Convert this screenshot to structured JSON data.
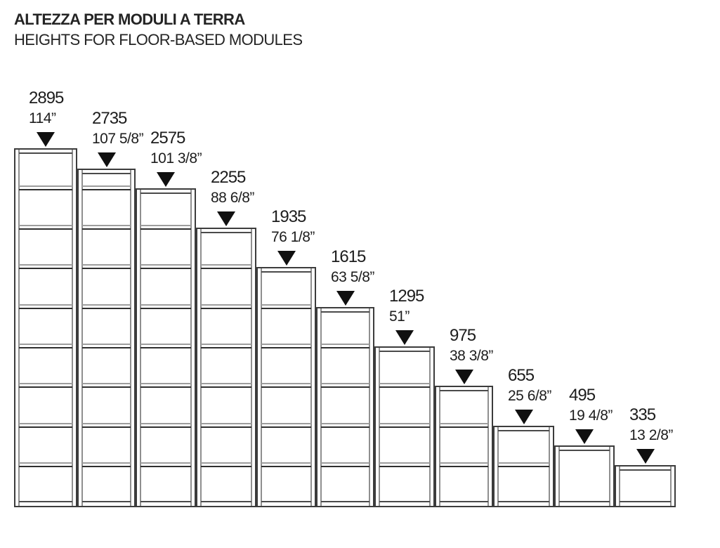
{
  "header": {
    "title_it": "ALTEZZA PER MODULI A TERRA",
    "title_en": "HEIGHTS FOR FLOOR-BASED MODULES"
  },
  "diagram": {
    "description": "Staircase row of 11 floor-based shelving modules, tallest to shortest, each annotated with height in millimetres and inches and a downward arrow marker pointing at its top edge",
    "modules": [
      {
        "height_mm": 2895,
        "label_mm": "2895",
        "label_inch": "114”",
        "shelf_levels_mm": [
          2575,
          2255,
          1935,
          1615,
          1295,
          975,
          655,
          335
        ]
      },
      {
        "height_mm": 2735,
        "label_mm": "2735",
        "label_inch": "107 5/8”",
        "shelf_levels_mm": [
          2575,
          2255,
          1935,
          1615,
          1295,
          975,
          655,
          335
        ]
      },
      {
        "height_mm": 2575,
        "label_mm": "2575",
        "label_inch": "101 3/8”",
        "shelf_levels_mm": [
          2255,
          1935,
          1615,
          1295,
          975,
          655,
          335
        ]
      },
      {
        "height_mm": 2255,
        "label_mm": "2255",
        "label_inch": "88 6/8”",
        "shelf_levels_mm": [
          1935,
          1615,
          1295,
          975,
          655,
          335
        ]
      },
      {
        "height_mm": 1935,
        "label_mm": "1935",
        "label_inch": "76 1/8”",
        "shelf_levels_mm": [
          1615,
          1295,
          975,
          655,
          335
        ]
      },
      {
        "height_mm": 1615,
        "label_mm": "1615",
        "label_inch": "63 5/8”",
        "shelf_levels_mm": [
          1295,
          975,
          655,
          335
        ]
      },
      {
        "height_mm": 1295,
        "label_mm": "1295",
        "label_inch": "51”",
        "shelf_levels_mm": [
          975,
          655,
          335
        ]
      },
      {
        "height_mm": 975,
        "label_mm": "975",
        "label_inch": "38 3/8”",
        "shelf_levels_mm": [
          655,
          335
        ]
      },
      {
        "height_mm": 655,
        "label_mm": "655",
        "label_inch": "25 6/8”",
        "shelf_levels_mm": [
          335
        ]
      },
      {
        "height_mm": 495,
        "label_mm": "495",
        "label_inch": "19 4/8”",
        "shelf_levels_mm": []
      },
      {
        "height_mm": 335,
        "label_mm": "335",
        "label_inch": "13 2/8”",
        "shelf_levels_mm": []
      }
    ],
    "colors": {
      "outline": "#3c3c3c",
      "inner_line": "#8f8f8f",
      "shelf_light": "#9d9d9d",
      "shelf_dark": "#2f2f2f",
      "marker": "#101010",
      "text": "#1d1d1d"
    }
  }
}
